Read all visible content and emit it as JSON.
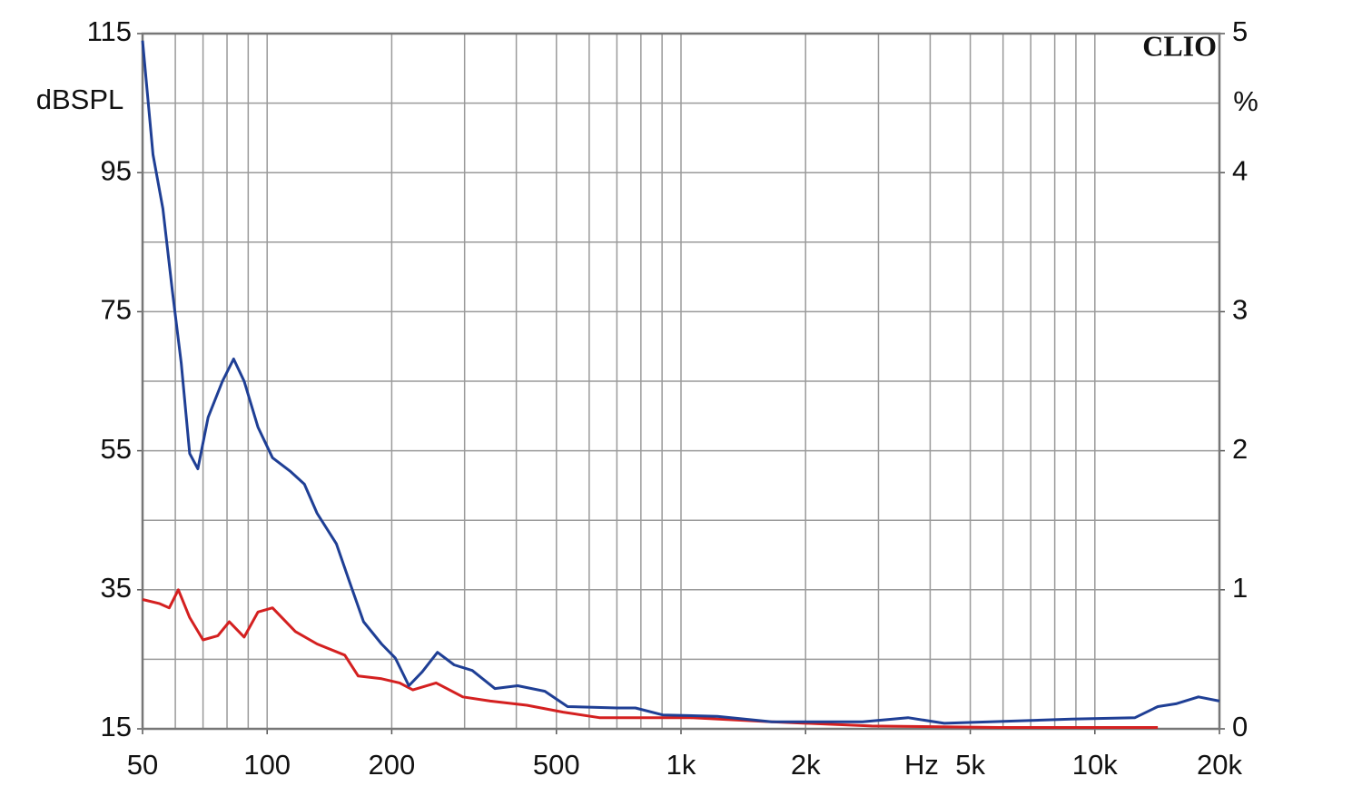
{
  "chart_data": {
    "type": "line",
    "xlabel": "Hz",
    "ylabel": "dBSPL",
    "y2label": "%",
    "watermark": "CLIO",
    "xscale": "log",
    "grid": true,
    "xlim": [
      50,
      20000
    ],
    "xticks": [
      50,
      100,
      200,
      500,
      {
        "value": 1000,
        "label": "1k"
      },
      {
        "value": 2000,
        "label": "2k"
      },
      {
        "value": 5000,
        "label": "5k"
      },
      {
        "value": 10000,
        "label": "10k"
      },
      {
        "value": 20000,
        "label": "20k"
      }
    ],
    "xgrid": [
      60,
      70,
      80,
      90,
      100,
      200,
      300,
      400,
      500,
      600,
      700,
      800,
      900,
      1000,
      2000,
      3000,
      4000,
      5000,
      6000,
      7000,
      8000,
      9000,
      10000
    ],
    "ylim": [
      15,
      115
    ],
    "yticks": [
      15,
      35,
      55,
      75,
      95,
      115
    ],
    "ygrid": [
      25,
      35,
      45,
      55,
      65,
      75,
      85,
      95,
      105
    ],
    "y2lim": [
      0,
      5
    ],
    "y2ticks": [
      0,
      1,
      2,
      3,
      4,
      5
    ],
    "series": [
      {
        "color": "#1f3f95",
        "axis": "y2",
        "x": [
          50,
          53,
          56,
          59,
          62,
          65,
          68,
          72,
          78,
          83,
          88,
          95,
          103,
          114,
          123,
          132,
          147,
          158,
          171,
          189,
          204,
          220,
          237,
          258,
          283,
          313,
          355,
          403,
          469,
          532,
          701,
          776,
          904,
          1224,
          1656,
          2747,
          3535,
          4325,
          5570,
          8770,
          12500,
          14190,
          15700,
          17800,
          20000
        ],
        "values": [
          4.95,
          4.13,
          3.74,
          3.15,
          2.63,
          1.98,
          1.87,
          2.24,
          2.5,
          2.66,
          2.5,
          2.17,
          1.95,
          1.85,
          1.76,
          1.55,
          1.33,
          1.06,
          0.77,
          0.61,
          0.51,
          0.31,
          0.41,
          0.55,
          0.46,
          0.42,
          0.29,
          0.31,
          0.27,
          0.16,
          0.15,
          0.15,
          0.1,
          0.09,
          0.05,
          0.05,
          0.08,
          0.04,
          0.05,
          0.07,
          0.08,
          0.16,
          0.18,
          0.23,
          0.2
        ]
      },
      {
        "color": "#d42020",
        "axis": "y2",
        "x": [
          50,
          55,
          58,
          61,
          65,
          70,
          76,
          81,
          88,
          95,
          103,
          117,
          132,
          154,
          166,
          189,
          209,
          225,
          256,
          297,
          346,
          424,
          519,
          635,
          776,
          1052,
          1656,
          2890,
          5860,
          14190
        ],
        "values": [
          0.93,
          0.9,
          0.87,
          1.0,
          0.8,
          0.64,
          0.67,
          0.77,
          0.66,
          0.84,
          0.87,
          0.7,
          0.61,
          0.53,
          0.38,
          0.36,
          0.33,
          0.28,
          0.33,
          0.23,
          0.2,
          0.17,
          0.12,
          0.08,
          0.08,
          0.08,
          0.05,
          0.02,
          0.01,
          0.01
        ]
      }
    ]
  }
}
